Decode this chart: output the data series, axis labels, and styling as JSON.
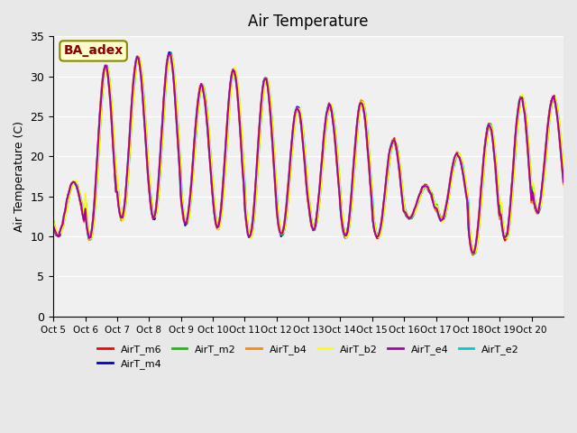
{
  "title": "Air Temperature",
  "ylabel": "Air Temperature (C)",
  "ylim": [
    0,
    35
  ],
  "yticks": [
    0,
    5,
    10,
    15,
    20,
    25,
    30,
    35
  ],
  "xtick_labels": [
    "Oct 5",
    "Oct 6",
    "Oct 7",
    "Oct 8",
    "Oct 9",
    "Oct 10",
    "Oct 11",
    "Oct 12",
    "Oct 13",
    "Oct 14",
    "Oct 15",
    "Oct 16",
    "Oct 17",
    "Oct 18",
    "Oct 19",
    "Oct 20"
  ],
  "series_names": [
    "AirT_m6",
    "AirT_m4",
    "AirT_m2",
    "AirT_b4",
    "AirT_b2",
    "AirT_e4",
    "AirT_e2"
  ],
  "series_colors": [
    "#ff0000",
    "#0000cc",
    "#00cc00",
    "#ff8800",
    "#ffff00",
    "#aa00aa",
    "#00cccc"
  ],
  "series_linewidths": [
    1.5,
    1.5,
    1.5,
    1.5,
    1.5,
    1.5,
    2.5
  ],
  "background_color": "#e8e8e8",
  "plot_bg_color": "#f0f0f0",
  "annotation_text": "BA_adex",
  "annotation_bg": "#ffffcc",
  "annotation_border": "#888800",
  "annotation_text_color": "#880000",
  "n_days": 16,
  "pts_per_day": 24,
  "day_min_temps": [
    10.2,
    9.7,
    12.2,
    12.3,
    11.6,
    11.1,
    9.9,
    10.2,
    10.9,
    9.9,
    9.9,
    12.3,
    12.0,
    7.8,
    9.7,
    13.0
  ],
  "day_max_temps": [
    16.8,
    31.3,
    32.4,
    32.9,
    28.9,
    30.8,
    29.8,
    26.1,
    26.4,
    26.8,
    22.0,
    16.3,
    20.3,
    24.0,
    27.4,
    27.3
  ],
  "grid_color": "#ffffff",
  "grid_lw": 1.0
}
